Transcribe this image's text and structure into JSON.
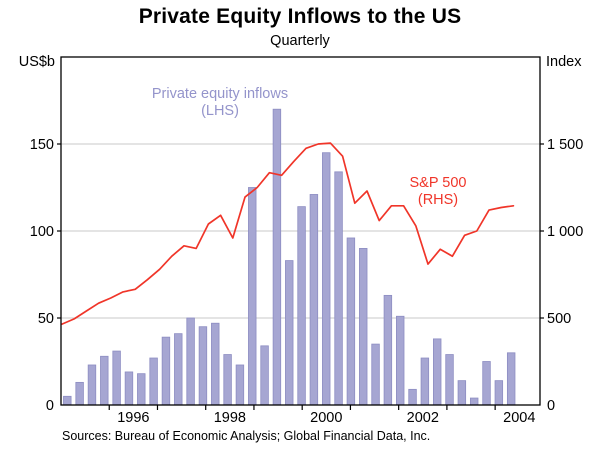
{
  "title": "Private Equity Inflows to the US",
  "subtitle": "Quarterly",
  "left_axis_unit": "US$b",
  "right_axis_unit": "Index",
  "legend_bars_line1": "Private equity inflows",
  "legend_bars_line2": "(LHS)",
  "legend_line_line1": "S&P 500",
  "legend_line_line2": "(RHS)",
  "source_note": "Sources: Bureau of Economic Analysis; Global Financial Data, Inc.",
  "colors": {
    "bar_fill": "#a6a6d2",
    "bar_edge": "#8d8dc2",
    "line": "#f03529",
    "legend_bars_text": "#9494cb",
    "legend_line_text": "#f03529",
    "gridline": "#c9c9c9",
    "frame": "#000000"
  },
  "chart_data": {
    "type": "bar+line",
    "title": "Private Equity Inflows to the US",
    "subtitle": "Quarterly",
    "frequency": "quarterly",
    "bars": {
      "name": "Private equity inflows (LHS)",
      "unit": "US$b",
      "categories": [
        "1995Q1",
        "1995Q2",
        "1995Q3",
        "1995Q4",
        "1996Q1",
        "1996Q2",
        "1996Q3",
        "1996Q4",
        "1997Q1",
        "1997Q2",
        "1997Q3",
        "1997Q4",
        "1998Q1",
        "1998Q2",
        "1998Q3",
        "1998Q4",
        "1999Q1",
        "1999Q2",
        "1999Q3",
        "1999Q4",
        "2000Q1",
        "2000Q2",
        "2000Q3",
        "2000Q4",
        "2001Q1",
        "2001Q2",
        "2001Q3",
        "2001Q4",
        "2002Q1",
        "2002Q2",
        "2002Q3",
        "2002Q4",
        "2003Q1",
        "2003Q2",
        "2003Q3",
        "2003Q4",
        "2004Q1"
      ],
      "values": [
        5,
        13,
        23,
        28,
        31,
        19,
        18,
        27,
        39,
        41,
        50,
        45,
        47,
        29,
        23,
        125,
        34,
        170,
        83,
        114,
        121,
        145,
        134,
        96,
        90,
        35,
        63,
        51,
        9,
        27,
        38,
        29,
        14,
        4,
        25,
        14,
        30
      ]
    },
    "line": {
      "name": "S&P 500 (RHS)",
      "unit": "Index",
      "categories": [
        "1995Q1",
        "1995Q2",
        "1995Q3",
        "1995Q4",
        "1996Q1",
        "1996Q2",
        "1996Q3",
        "1996Q4",
        "1997Q1",
        "1997Q2",
        "1997Q3",
        "1997Q4",
        "1998Q1",
        "1998Q2",
        "1998Q3",
        "1998Q4",
        "1999Q1",
        "1999Q2",
        "1999Q3",
        "1999Q4",
        "2000Q1",
        "2000Q2",
        "2000Q3",
        "2000Q4",
        "2001Q1",
        "2001Q2",
        "2001Q3",
        "2001Q4",
        "2002Q1",
        "2002Q2",
        "2002Q3",
        "2002Q4",
        "2003Q1",
        "2003Q2",
        "2003Q3",
        "2003Q4",
        "2004Q1",
        "2004Q2"
      ],
      "values": [
        465,
        495,
        540,
        585,
        615,
        650,
        665,
        720,
        780,
        855,
        915,
        900,
        1040,
        1090,
        960,
        1195,
        1250,
        1335,
        1320,
        1400,
        1475,
        1500,
        1505,
        1430,
        1160,
        1230,
        1060,
        1145,
        1145,
        1030,
        810,
        895,
        855,
        975,
        1000,
        1120,
        1135,
        1145
      ]
    },
    "left_axis": {
      "label": "US$b",
      "min": 0,
      "max": 200,
      "gridlines": [
        50,
        100,
        150
      ],
      "ticks": [
        0,
        50,
        100,
        150
      ],
      "tick_labels": [
        "0",
        "50",
        "100",
        "150"
      ]
    },
    "right_axis": {
      "label": "Index",
      "min": 0,
      "max": 2000,
      "ticks": [
        0,
        500,
        1000,
        1500
      ],
      "tick_labels": [
        "0",
        "500",
        "1 000",
        "1 500"
      ]
    },
    "x_axis": {
      "year_ticks": [
        1996,
        1997,
        1998,
        1999,
        2000,
        2001,
        2002,
        2003,
        2004
      ],
      "labels": [
        "1996",
        "1998",
        "2000",
        "2002",
        "2004"
      ],
      "label_years": [
        1996,
        1998,
        2000,
        2002,
        2004
      ]
    },
    "legend_position": "inside-plot",
    "grid": "horizontal-only"
  }
}
